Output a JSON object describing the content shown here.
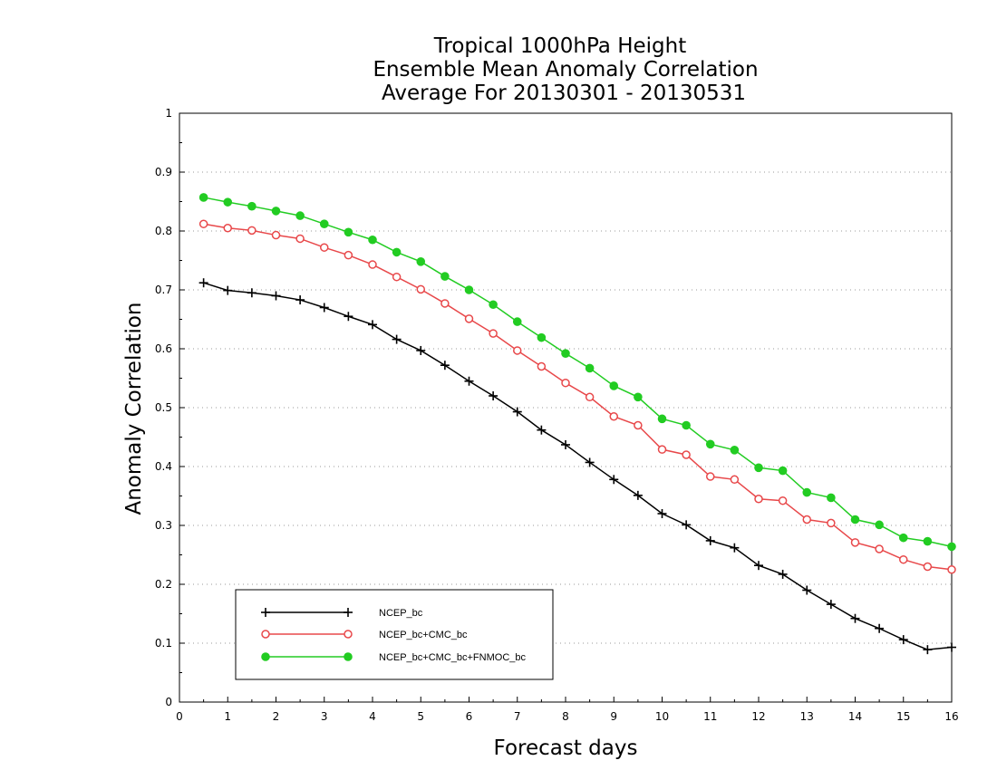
{
  "chart_data": {
    "type": "line",
    "title": [
      "Tropical 1000hPa Height",
      "Ensemble Mean Anomaly Correlation",
      "Average For 20130301 - 20130531"
    ],
    "xlabel": "Forecast days",
    "ylabel": "Anomaly Correlation",
    "xlim": [
      0,
      16
    ],
    "ylim": [
      0,
      1
    ],
    "x_ticks": [
      0,
      1,
      2,
      3,
      4,
      5,
      6,
      7,
      8,
      9,
      10,
      11,
      12,
      13,
      14,
      15,
      16
    ],
    "x_tick_labels": [
      "0",
      "1",
      "2",
      "3",
      "4",
      "5",
      "6",
      "7",
      "8",
      "9",
      "10",
      "11",
      "12",
      "13",
      "14",
      "15",
      "16"
    ],
    "y_ticks": [
      0,
      0.1,
      0.2,
      0.3,
      0.4,
      0.5,
      0.6,
      0.7,
      0.8,
      0.9,
      1
    ],
    "y_tick_labels": [
      "0",
      "0.1",
      "0.2",
      "0.3",
      "0.4",
      "0.5",
      "0.6",
      "0.7",
      "0.8",
      "0.9",
      "1"
    ],
    "grid": "horizontal dotted",
    "legend_position": "bottom-left",
    "x": [
      0.5,
      1,
      1.5,
      2,
      2.5,
      3,
      3.5,
      4,
      4.5,
      5,
      5.5,
      6,
      6.5,
      7,
      7.5,
      8,
      8.5,
      9,
      9.5,
      10,
      10.5,
      11,
      11.5,
      12,
      12.5,
      13,
      13.5,
      14,
      14.5,
      15,
      15.5,
      16
    ],
    "series": [
      {
        "name": "NCEP_bc",
        "color": "#000000",
        "marker": "plus",
        "values": [
          0.712,
          0.699,
          0.695,
          0.69,
          0.683,
          0.67,
          0.655,
          0.641,
          0.616,
          0.597,
          0.572,
          0.545,
          0.52,
          0.493,
          0.462,
          0.437,
          0.407,
          0.378,
          0.351,
          0.32,
          0.301,
          0.274,
          0.262,
          0.232,
          0.217,
          0.19,
          0.166,
          0.142,
          0.125,
          0.106,
          0.089,
          0.093
        ]
      },
      {
        "name": "NCEP_bc+CMC_bc",
        "color": "#e8484a",
        "marker": "open-circle",
        "values": [
          0.812,
          0.805,
          0.801,
          0.793,
          0.787,
          0.772,
          0.759,
          0.743,
          0.722,
          0.701,
          0.677,
          0.651,
          0.626,
          0.597,
          0.57,
          0.542,
          0.518,
          0.485,
          0.47,
          0.429,
          0.42,
          0.383,
          0.378,
          0.345,
          0.342,
          0.31,
          0.304,
          0.271,
          0.26,
          0.242,
          0.23,
          0.225
        ]
      },
      {
        "name": "NCEP_bc+CMC_bc+FNMOC_bc",
        "color": "#22cc22",
        "marker": "filled-circle",
        "values": [
          0.857,
          0.849,
          0.842,
          0.834,
          0.826,
          0.812,
          0.798,
          0.785,
          0.764,
          0.748,
          0.723,
          0.7,
          0.675,
          0.646,
          0.619,
          0.592,
          0.567,
          0.537,
          0.518,
          0.481,
          0.47,
          0.438,
          0.428,
          0.398,
          0.393,
          0.356,
          0.347,
          0.31,
          0.301,
          0.279,
          0.273,
          0.264
        ]
      }
    ]
  }
}
